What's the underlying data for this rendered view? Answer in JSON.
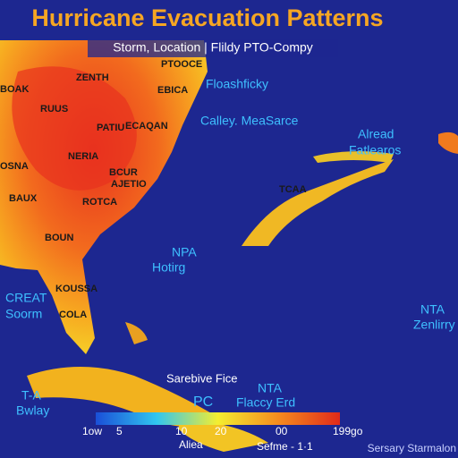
{
  "header": {
    "title": "Hurricane Evacuation Patterns",
    "subtitle": "Storm, Location | Flildy PTO-Compy"
  },
  "labels": [
    "PTOOCE",
    "ZENTH",
    "BOAK",
    "EBICA",
    "Floashficky",
    "RUUS",
    "PATIU",
    "ECAQAN",
    "Calley. MeaSarce",
    "Alread",
    "Fatlearos",
    "OSNA",
    "NERIA",
    "BCUR",
    "AJETIO",
    "BAUX",
    "ROTCA",
    "TCAA",
    "BOUN",
    "NPA",
    "Hotirg",
    "CREAT",
    "Soorm",
    "KOUSSA",
    "COLA",
    "NTA",
    "Zenlirry",
    "Sarebive Fice",
    "NTA",
    "Flaccy Erd",
    "PC",
    "T-A",
    "Bwlay"
  ],
  "legend": {
    "ticks": [
      "1ow",
      "5",
      "10",
      "20",
      "00",
      "199go"
    ],
    "notes": [
      "Aliea",
      "Sefme - 1·1"
    ]
  },
  "footer": {
    "credit": "Sersary Starmalon"
  }
}
